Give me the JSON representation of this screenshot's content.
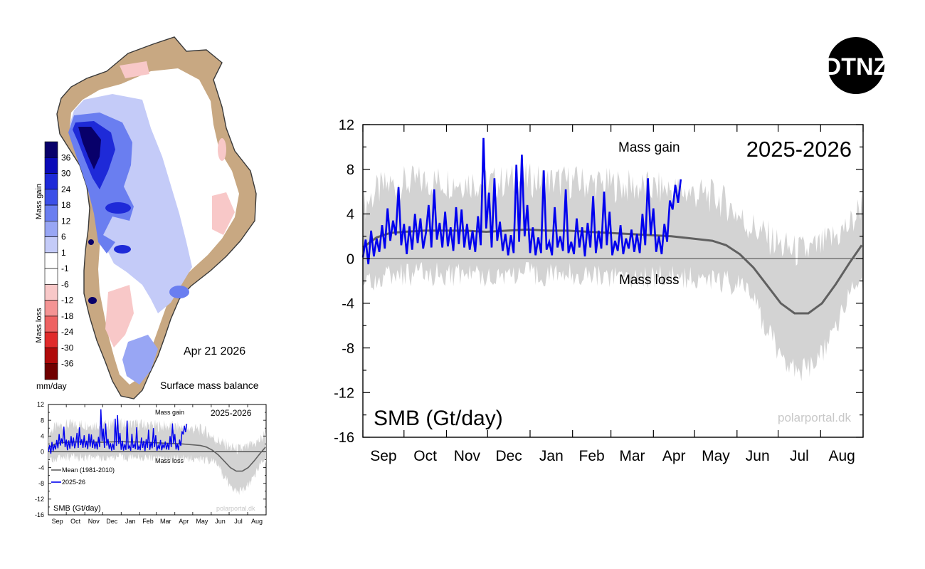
{
  "logo": {
    "text": "DTNZ",
    "bg_color": "#000000",
    "fg_color": "#ffffff"
  },
  "map_panel": {
    "date": "Apr 21 2026",
    "caption": "Surface mass balance",
    "colorbar": {
      "unit": "mm/day",
      "gain_label": "Mass gain",
      "loss_label": "Mass loss",
      "ticks": [
        "36",
        "30",
        "24",
        "18",
        "12",
        "6",
        "1",
        "-1",
        "-6",
        "-12",
        "-18",
        "-24",
        "-30",
        "-36"
      ],
      "colors": [
        "#08006a",
        "#0a0ab8",
        "#1e2ad8",
        "#3c50e8",
        "#6a7ef0",
        "#98a6f4",
        "#c4cbf8",
        "#ffffff",
        "#ffffff",
        "#f8c8c8",
        "#f49494",
        "#ee6262",
        "#e02a2a",
        "#b00a0a",
        "#700000"
      ]
    }
  },
  "main_chart": {
    "period_label": "2025-2026",
    "gain_label": "Mass gain",
    "loss_label": "Mass loss",
    "ylabel": "SMB (Gt/day)",
    "source": "polarportal.dk"
  },
  "small_chart": {
    "period_label": "2025-2026",
    "gain_label": "Mass gain",
    "loss_label": "Mass loss",
    "ylabel": "SMB (Gt/day)",
    "source": "polarportal.dk",
    "legend": [
      {
        "label": "Mean (1981-2010)",
        "color": "#606060"
      },
      {
        "label": "2025-26",
        "color": "#0000ee"
      }
    ]
  },
  "colors": {
    "mean": "#606060",
    "current": "#0000ee",
    "range": "#d3d3d3",
    "source_text": "#c8c8c8",
    "land": "#c8a882",
    "coast": "#3a3a3a"
  },
  "chart_data": {
    "type": "line",
    "ylim": [
      -16,
      12
    ],
    "yticks": [
      12,
      8,
      4,
      0,
      -4,
      -8,
      -12,
      -16
    ],
    "month_labels": [
      "Sep",
      "Oct",
      "Nov",
      "Dec",
      "Jan",
      "Feb",
      "Mar",
      "Apr",
      "May",
      "Jun",
      "Jul",
      "Aug"
    ],
    "x_unit": "day of season (day 0 = Sep 1, 2025)",
    "series": [
      {
        "name": "Mean (1981-2010)",
        "x": [
          0,
          10,
          20,
          30,
          45,
          60,
          75,
          90,
          105,
          120,
          135,
          150,
          165,
          180,
          195,
          210,
          225,
          240,
          255,
          265,
          275,
          285,
          295,
          305,
          315,
          325,
          335,
          345,
          355,
          364
        ],
        "values": [
          1.0,
          1.9,
          2.3,
          2.4,
          2.5,
          2.5,
          2.5,
          2.4,
          2.5,
          2.6,
          2.5,
          2.5,
          2.4,
          2.3,
          2.2,
          2.1,
          2.0,
          1.8,
          1.6,
          1.2,
          0.4,
          -0.8,
          -2.4,
          -4.0,
          -4.9,
          -4.9,
          -4.0,
          -2.3,
          -0.4,
          1.2
        ]
      },
      {
        "name": "2025-26",
        "x": [
          0,
          2,
          4,
          6,
          8,
          10,
          12,
          14,
          16,
          18,
          20,
          22,
          24,
          26,
          28,
          30,
          32,
          34,
          36,
          38,
          40,
          42,
          44,
          46,
          48,
          50,
          52,
          54,
          56,
          58,
          60,
          62,
          64,
          66,
          68,
          70,
          72,
          74,
          76,
          78,
          80,
          82,
          84,
          86,
          88,
          90,
          92,
          94,
          96,
          98,
          100,
          102,
          104,
          106,
          108,
          110,
          112,
          114,
          116,
          118,
          120,
          122,
          124,
          126,
          128,
          130,
          132,
          134,
          136,
          138,
          140,
          142,
          144,
          146,
          148,
          150,
          152,
          154,
          156,
          158,
          160,
          162,
          164,
          166,
          168,
          170,
          172,
          174,
          176,
          178,
          180,
          182,
          184,
          186,
          188,
          190,
          192,
          194,
          196,
          198,
          200,
          202,
          204,
          206,
          208,
          210,
          212,
          214,
          216,
          218,
          220,
          222,
          224,
          226,
          228,
          230,
          232
        ],
        "values": [
          0.1,
          1.7,
          -0.5,
          2.5,
          0.2,
          1.8,
          0.6,
          3.0,
          0.9,
          4.5,
          1.6,
          3.4,
          2.1,
          6.4,
          1.2,
          3.1,
          0.4,
          2.9,
          0.8,
          4.0,
          1.4,
          3.6,
          0.9,
          2.3,
          4.8,
          1.0,
          6.2,
          1.7,
          3.2,
          1.0,
          4.2,
          1.1,
          2.8,
          0.7,
          4.6,
          1.3,
          4.4,
          1.0,
          3.1,
          0.8,
          2.5,
          0.6,
          3.8,
          1.2,
          10.8,
          2.7,
          5.9,
          1.0,
          7.2,
          1.6,
          3.3,
          0.7,
          2.2,
          0.3,
          2.1,
          0.5,
          8.4,
          1.5,
          9.3,
          2.0,
          4.8,
          0.5,
          2.8,
          0.3,
          1.9,
          0.5,
          7.9,
          0.8,
          1.5,
          0.3,
          4.6,
          1.0,
          2.0,
          0.7,
          6.2,
          0.5,
          1.5,
          0.4,
          3.6,
          1.0,
          2.8,
          0.2,
          3.2,
          1.0,
          5.6,
          0.5,
          2.5,
          0.9,
          6.0,
          1.2,
          4.2,
          0.3,
          1.6,
          0.7,
          3.0,
          0.4,
          1.8,
          0.9,
          2.6,
          0.6,
          2.2,
          0.5,
          4.0,
          1.2,
          7.2,
          2.1,
          4.5,
          0.6,
          2.0,
          0.4,
          3.1,
          1.5,
          5.2,
          4.4,
          6.6,
          5.0,
          7.1
        ]
      }
    ]
  }
}
